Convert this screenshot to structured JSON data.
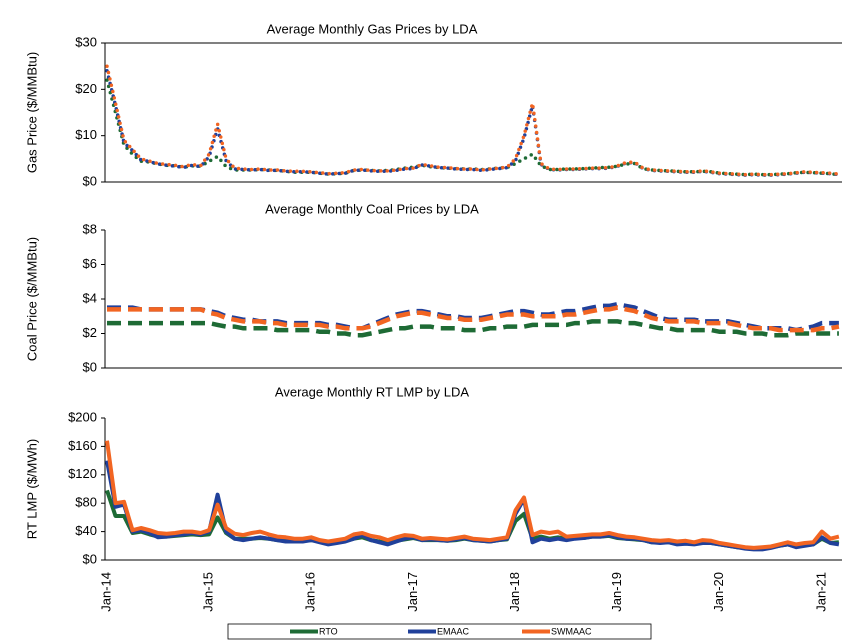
{
  "chart_data": [
    {
      "type": "line",
      "title": "Average Monthly Gas Prices by LDA",
      "y_label": "Gas Price ($/MMBtu)",
      "line_style": "dotted",
      "ylim": [
        0,
        30
      ],
      "yticks": [
        {
          "value": 0,
          "label": "$0"
        },
        {
          "value": 10,
          "label": "$10"
        },
        {
          "value": 20,
          "label": "$20"
        },
        {
          "value": 30,
          "label": "$30"
        }
      ],
      "series": [
        {
          "color": "#1e6b35",
          "values": [
            22,
            15,
            8,
            6,
            4.5,
            4.3,
            3.9,
            3.6,
            3.5,
            3.2,
            3.5,
            3.4,
            4.5,
            5.5,
            3.3,
            2.6,
            2.6,
            2.6,
            2.7,
            2.6,
            2.5,
            2.3,
            2.1,
            2.1,
            2.1,
            1.9,
            1.7,
            1.8,
            1.9,
            2.5,
            2.6,
            2.5,
            2.4,
            2.5,
            2.7,
            3.0,
            3.2,
            3.6,
            3.3,
            3.1,
            3.0,
            2.9,
            2.8,
            2.8,
            2.7,
            2.8,
            3.0,
            3.1,
            4,
            5,
            6,
            3.5,
            2.7,
            2.7,
            2.8,
            2.8,
            2.9,
            3.0,
            3.1,
            3.2,
            3.4,
            3.9,
            4.0,
            2.9,
            2.6,
            2.5,
            2.4,
            2.3,
            2.2,
            2.2,
            2.3,
            2.2,
            1.9,
            1.8,
            1.7,
            1.6,
            1.7,
            1.6,
            1.6,
            1.7,
            1.8,
            2.0,
            2.1,
            2.0,
            1.9,
            1.8,
            1.6
          ]
        },
        {
          "color": "#20409a",
          "values": [
            24,
            16.5,
            8.5,
            6.8,
            4.8,
            4.4,
            3.9,
            3.6,
            3.4,
            3.1,
            3.6,
            3.3,
            5.5,
            11.5,
            4.6,
            2.8,
            2.7,
            2.6,
            2.7,
            2.5,
            2.5,
            2.3,
            2.2,
            2.2,
            2.1,
            1.9,
            1.7,
            1.8,
            1.9,
            2.5,
            2.6,
            2.4,
            2.3,
            2.3,
            2.5,
            2.8,
            2.9,
            3.7,
            3.4,
            3.1,
            3.0,
            2.8,
            2.7,
            2.7,
            2.5,
            2.7,
            2.9,
            3.1,
            4.6,
            9.5,
            16.5,
            3.8,
            2.7,
            2.6,
            2.7,
            2.7,
            2.8,
            2.9,
            2.9,
            3.0,
            3.4,
            4.1,
            4.2,
            2.9,
            2.5,
            2.4,
            2.3,
            2.2,
            2.1,
            2.1,
            2.3,
            2.1,
            1.8,
            1.7,
            1.6,
            1.5,
            1.6,
            1.5,
            1.5,
            1.6,
            1.7,
            1.9,
            2.1,
            2.0,
            1.9,
            1.8,
            1.6
          ]
        },
        {
          "color": "#f26522",
          "values": [
            25,
            17,
            9,
            7,
            5,
            4.5,
            4,
            3.8,
            3.6,
            3.3,
            3.8,
            3.5,
            6,
            12.5,
            5,
            3,
            2.8,
            2.7,
            2.8,
            2.6,
            2.6,
            2.4,
            2.3,
            2.3,
            2.2,
            2.0,
            1.8,
            1.9,
            2.0,
            2.6,
            2.7,
            2.5,
            2.4,
            2.4,
            2.6,
            2.9,
            3.0,
            3.8,
            3.5,
            3.2,
            3.1,
            2.9,
            2.8,
            2.8,
            2.6,
            2.8,
            3.0,
            3.2,
            5,
            10,
            17,
            4,
            2.8,
            2.7,
            2.8,
            2.8,
            2.9,
            3.0,
            3.0,
            3.1,
            3.5,
            4.2,
            4.3,
            3.0,
            2.6,
            2.5,
            2.4,
            2.3,
            2.2,
            2.2,
            2.4,
            2.2,
            1.9,
            1.8,
            1.7,
            1.6,
            1.7,
            1.6,
            1.6,
            1.7,
            1.8,
            2.0,
            2.2,
            2.1,
            2.0,
            1.9,
            1.7
          ]
        }
      ]
    },
    {
      "type": "line",
      "title": "Average Monthly Coal Prices by LDA",
      "y_label": "Coal Price ($/MMBtu)",
      "line_style": "dashed",
      "ylim": [
        0,
        8
      ],
      "yticks": [
        {
          "value": 0,
          "label": "$0"
        },
        {
          "value": 2,
          "label": "$2"
        },
        {
          "value": 4,
          "label": "$4"
        },
        {
          "value": 6,
          "label": "$6"
        },
        {
          "value": 8,
          "label": "$8"
        }
      ],
      "series": [
        {
          "color": "#1e6b35",
          "values": [
            2.6,
            2.6,
            2.6,
            2.6,
            2.6,
            2.6,
            2.6,
            2.6,
            2.6,
            2.6,
            2.6,
            2.6,
            2.6,
            2.5,
            2.4,
            2.4,
            2.3,
            2.3,
            2.3,
            2.3,
            2.2,
            2.2,
            2.2,
            2.2,
            2.2,
            2.1,
            2.1,
            2.0,
            2.0,
            1.9,
            1.9,
            2.0,
            2.1,
            2.2,
            2.3,
            2.3,
            2.4,
            2.4,
            2.4,
            2.3,
            2.3,
            2.3,
            2.2,
            2.2,
            2.2,
            2.3,
            2.3,
            2.4,
            2.4,
            2.4,
            2.5,
            2.5,
            2.5,
            2.5,
            2.5,
            2.6,
            2.6,
            2.7,
            2.7,
            2.7,
            2.7,
            2.6,
            2.6,
            2.5,
            2.4,
            2.3,
            2.3,
            2.2,
            2.2,
            2.2,
            2.2,
            2.2,
            2.1,
            2.1,
            2.1,
            2.0,
            2.0,
            2.0,
            1.9,
            1.9,
            1.9,
            2.0,
            2.0,
            2.0,
            2.0,
            2.0,
            2.0
          ]
        },
        {
          "color": "#20409a",
          "values": [
            3.5,
            3.5,
            3.5,
            3.5,
            3.4,
            3.4,
            3.4,
            3.4,
            3.4,
            3.4,
            3.4,
            3.4,
            3.3,
            3.2,
            3.0,
            2.9,
            2.8,
            2.8,
            2.7,
            2.7,
            2.7,
            2.6,
            2.6,
            2.6,
            2.6,
            2.6,
            2.5,
            2.5,
            2.4,
            2.3,
            2.3,
            2.5,
            2.7,
            2.9,
            3.1,
            3.2,
            3.3,
            3.3,
            3.2,
            3.1,
            3.0,
            3.0,
            2.9,
            2.9,
            2.9,
            3.0,
            3.1,
            3.2,
            3.3,
            3.3,
            3.2,
            3.1,
            3.1,
            3.2,
            3.3,
            3.3,
            3.4,
            3.5,
            3.6,
            3.6,
            3.7,
            3.6,
            3.5,
            3.3,
            3.1,
            2.9,
            2.8,
            2.8,
            2.8,
            2.8,
            2.7,
            2.7,
            2.7,
            2.7,
            2.6,
            2.5,
            2.4,
            2.3,
            2.3,
            2.3,
            2.3,
            2.2,
            2.3,
            2.4,
            2.6,
            2.6,
            2.6
          ]
        },
        {
          "color": "#f26522",
          "values": [
            3.4,
            3.4,
            3.4,
            3.4,
            3.4,
            3.4,
            3.4,
            3.4,
            3.4,
            3.4,
            3.4,
            3.4,
            3.2,
            3.1,
            2.9,
            2.8,
            2.7,
            2.7,
            2.7,
            2.6,
            2.6,
            2.5,
            2.5,
            2.5,
            2.5,
            2.5,
            2.4,
            2.4,
            2.3,
            2.3,
            2.3,
            2.4,
            2.6,
            2.8,
            3.0,
            3.1,
            3.2,
            3.2,
            3.1,
            3.0,
            2.9,
            2.9,
            2.8,
            2.8,
            2.8,
            2.9,
            3.0,
            3.1,
            3.1,
            3.1,
            3.0,
            3.0,
            3.0,
            3.0,
            3.1,
            3.1,
            3.2,
            3.3,
            3.4,
            3.4,
            3.5,
            3.4,
            3.3,
            3.1,
            2.9,
            2.8,
            2.7,
            2.7,
            2.7,
            2.7,
            2.6,
            2.6,
            2.6,
            2.6,
            2.5,
            2.4,
            2.3,
            2.3,
            2.3,
            2.2,
            2.2,
            2.2,
            2.2,
            2.2,
            2.3,
            2.3,
            2.4
          ]
        }
      ]
    },
    {
      "type": "line",
      "title": "Average Monthly RT LMP by LDA",
      "y_label": "RT LMP ($/MWh)",
      "line_style": "solid",
      "ylim": [
        0,
        200
      ],
      "yticks": [
        {
          "value": 0,
          "label": "$0"
        },
        {
          "value": 40,
          "label": "$40"
        },
        {
          "value": 80,
          "label": "$80"
        },
        {
          "value": 120,
          "label": "$120"
        },
        {
          "value": 160,
          "label": "$160"
        },
        {
          "value": 200,
          "label": "$200"
        }
      ],
      "categories": [
        "Jan-14",
        null,
        null,
        null,
        null,
        null,
        null,
        null,
        null,
        null,
        null,
        null,
        "Jan-15",
        null,
        null,
        null,
        null,
        null,
        null,
        null,
        null,
        null,
        null,
        null,
        "Jan-16",
        null,
        null,
        null,
        null,
        null,
        null,
        null,
        null,
        null,
        null,
        null,
        "Jan-17",
        null,
        null,
        null,
        null,
        null,
        null,
        null,
        null,
        null,
        null,
        null,
        "Jan-18",
        null,
        null,
        null,
        null,
        null,
        null,
        null,
        null,
        null,
        null,
        null,
        "Jan-19",
        null,
        null,
        null,
        null,
        null,
        null,
        null,
        null,
        null,
        null,
        null,
        "Jan-20",
        null,
        null,
        null,
        null,
        null,
        null,
        null,
        null,
        null,
        null,
        null,
        "Jan-21",
        null,
        null
      ],
      "series": [
        {
          "name": "RTO",
          "color": "#1e6b35",
          "values": [
            98,
            62,
            62,
            38,
            40,
            36,
            33,
            33,
            34,
            35,
            36,
            35,
            36,
            60,
            38,
            30,
            30,
            30,
            31,
            30,
            28,
            27,
            27,
            27,
            28,
            26,
            24,
            25,
            27,
            30,
            32,
            28,
            26,
            24,
            27,
            29,
            31,
            28,
            28,
            28,
            27,
            28,
            30,
            28,
            27,
            26,
            28,
            29,
            55,
            65,
            30,
            33,
            30,
            32,
            30,
            31,
            31,
            33,
            33,
            34,
            31,
            30,
            29,
            28,
            25,
            25,
            25,
            23,
            24,
            23,
            25,
            24,
            22,
            20,
            18,
            17,
            16,
            16,
            18,
            20,
            22,
            19,
            21,
            22,
            30,
            24,
            25
          ]
        },
        {
          "name": "EMAAC",
          "color": "#20409a",
          "values": [
            140,
            75,
            78,
            40,
            42,
            38,
            32,
            33,
            35,
            36,
            38,
            36,
            40,
            92,
            40,
            30,
            28,
            30,
            32,
            30,
            28,
            26,
            26,
            26,
            28,
            25,
            22,
            24,
            26,
            30,
            35,
            28,
            25,
            22,
            26,
            30,
            32,
            28,
            29,
            28,
            27,
            29,
            31,
            28,
            27,
            26,
            28,
            30,
            65,
            86,
            25,
            30,
            28,
            30,
            28,
            30,
            31,
            33,
            33,
            35,
            32,
            30,
            30,
            28,
            25,
            24,
            25,
            22,
            23,
            22,
            24,
            24,
            22,
            20,
            18,
            16,
            15,
            15,
            17,
            20,
            22,
            18,
            20,
            22,
            32,
            24,
            22
          ]
        },
        {
          "name": "SWMAAC",
          "color": "#f26522",
          "values": [
            168,
            80,
            82,
            42,
            45,
            42,
            38,
            37,
            38,
            40,
            40,
            38,
            42,
            78,
            45,
            37,
            35,
            38,
            40,
            36,
            33,
            32,
            30,
            30,
            32,
            28,
            26,
            28,
            30,
            36,
            38,
            34,
            32,
            28,
            32,
            35,
            34,
            30,
            31,
            30,
            29,
            31,
            33,
            30,
            29,
            28,
            30,
            32,
            70,
            88,
            35,
            40,
            38,
            40,
            33,
            34,
            35,
            36,
            36,
            38,
            35,
            33,
            32,
            30,
            28,
            27,
            28,
            26,
            27,
            25,
            28,
            27,
            24,
            22,
            20,
            18,
            17,
            18,
            19,
            22,
            25,
            22,
            24,
            25,
            40,
            30,
            33
          ]
        }
      ]
    }
  ]
}
